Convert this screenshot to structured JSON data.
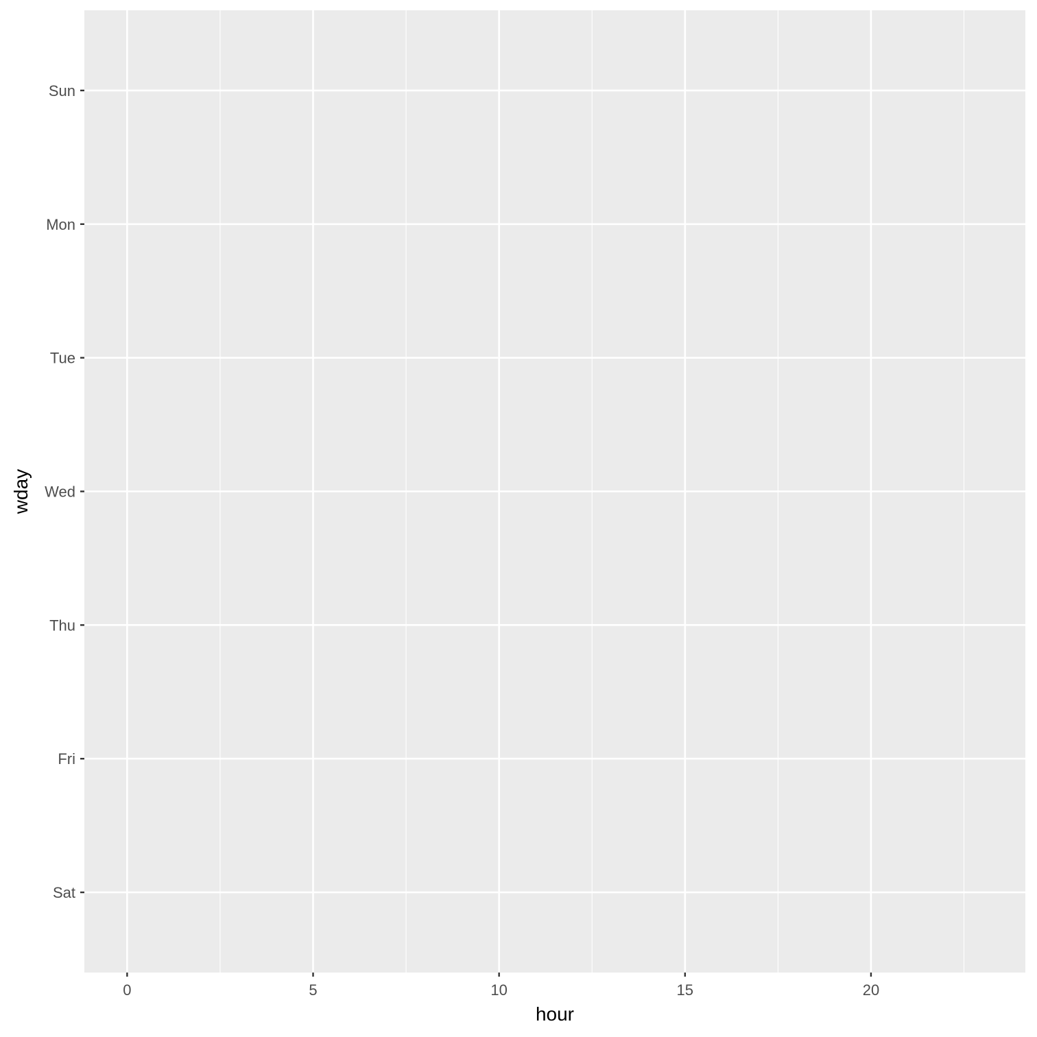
{
  "chart_data": {
    "type": "scatter",
    "title": "",
    "xlabel": "hour",
    "ylabel": "wday",
    "x_ticks": [
      0,
      5,
      10,
      15,
      20
    ],
    "x_range": [
      -1.15,
      24.15
    ],
    "y_categories": [
      "Sun",
      "Mon",
      "Tue",
      "Wed",
      "Thu",
      "Fri",
      "Sat"
    ],
    "series": [],
    "grid": true,
    "colors": {
      "panel_background": "#EBEBEB",
      "grid_major": "#FFFFFF",
      "grid_minor": "#FFFFFF",
      "tick_text": "#4D4D4D",
      "tick_mark": "#333333",
      "axis_title": "#000000"
    }
  }
}
